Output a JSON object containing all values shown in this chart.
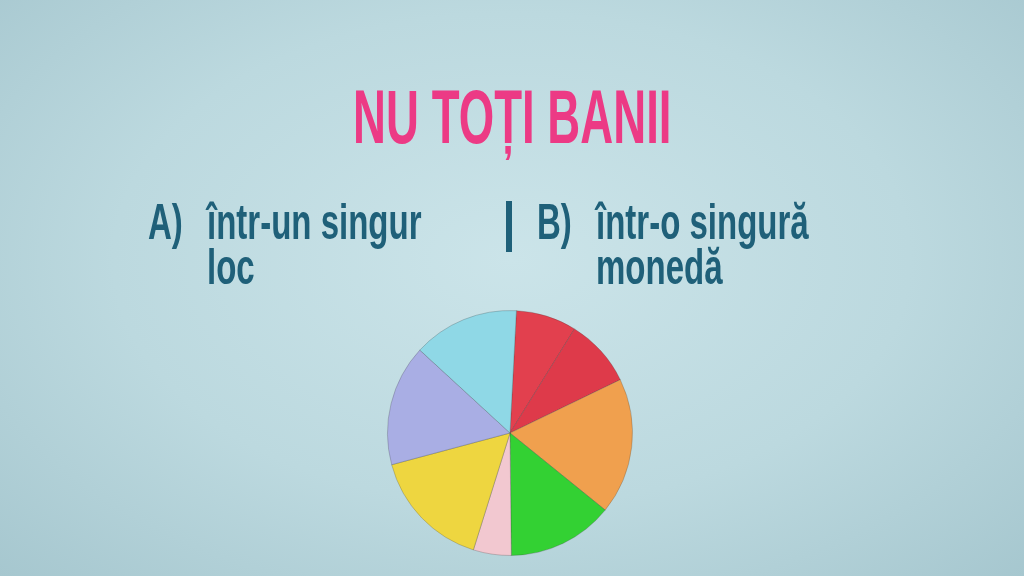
{
  "chart_data": {
    "type": "pie",
    "title": "NU TOȚI BANII",
    "annotations": [
      "A)",
      "într-un singur loc",
      "B)",
      "într-o singură monedă"
    ],
    "categories": [
      null,
      null,
      null,
      null,
      null,
      null,
      null,
      null
    ],
    "values": [
      8,
      9,
      18,
      14,
      5,
      16,
      16,
      14
    ],
    "colors": [
      "#e2404e",
      "#de3a4a",
      "#f0a04e",
      "#33d133",
      "#f2c8d0",
      "#eed640",
      "#a9aee4",
      "#8fd8e6"
    ]
  }
}
